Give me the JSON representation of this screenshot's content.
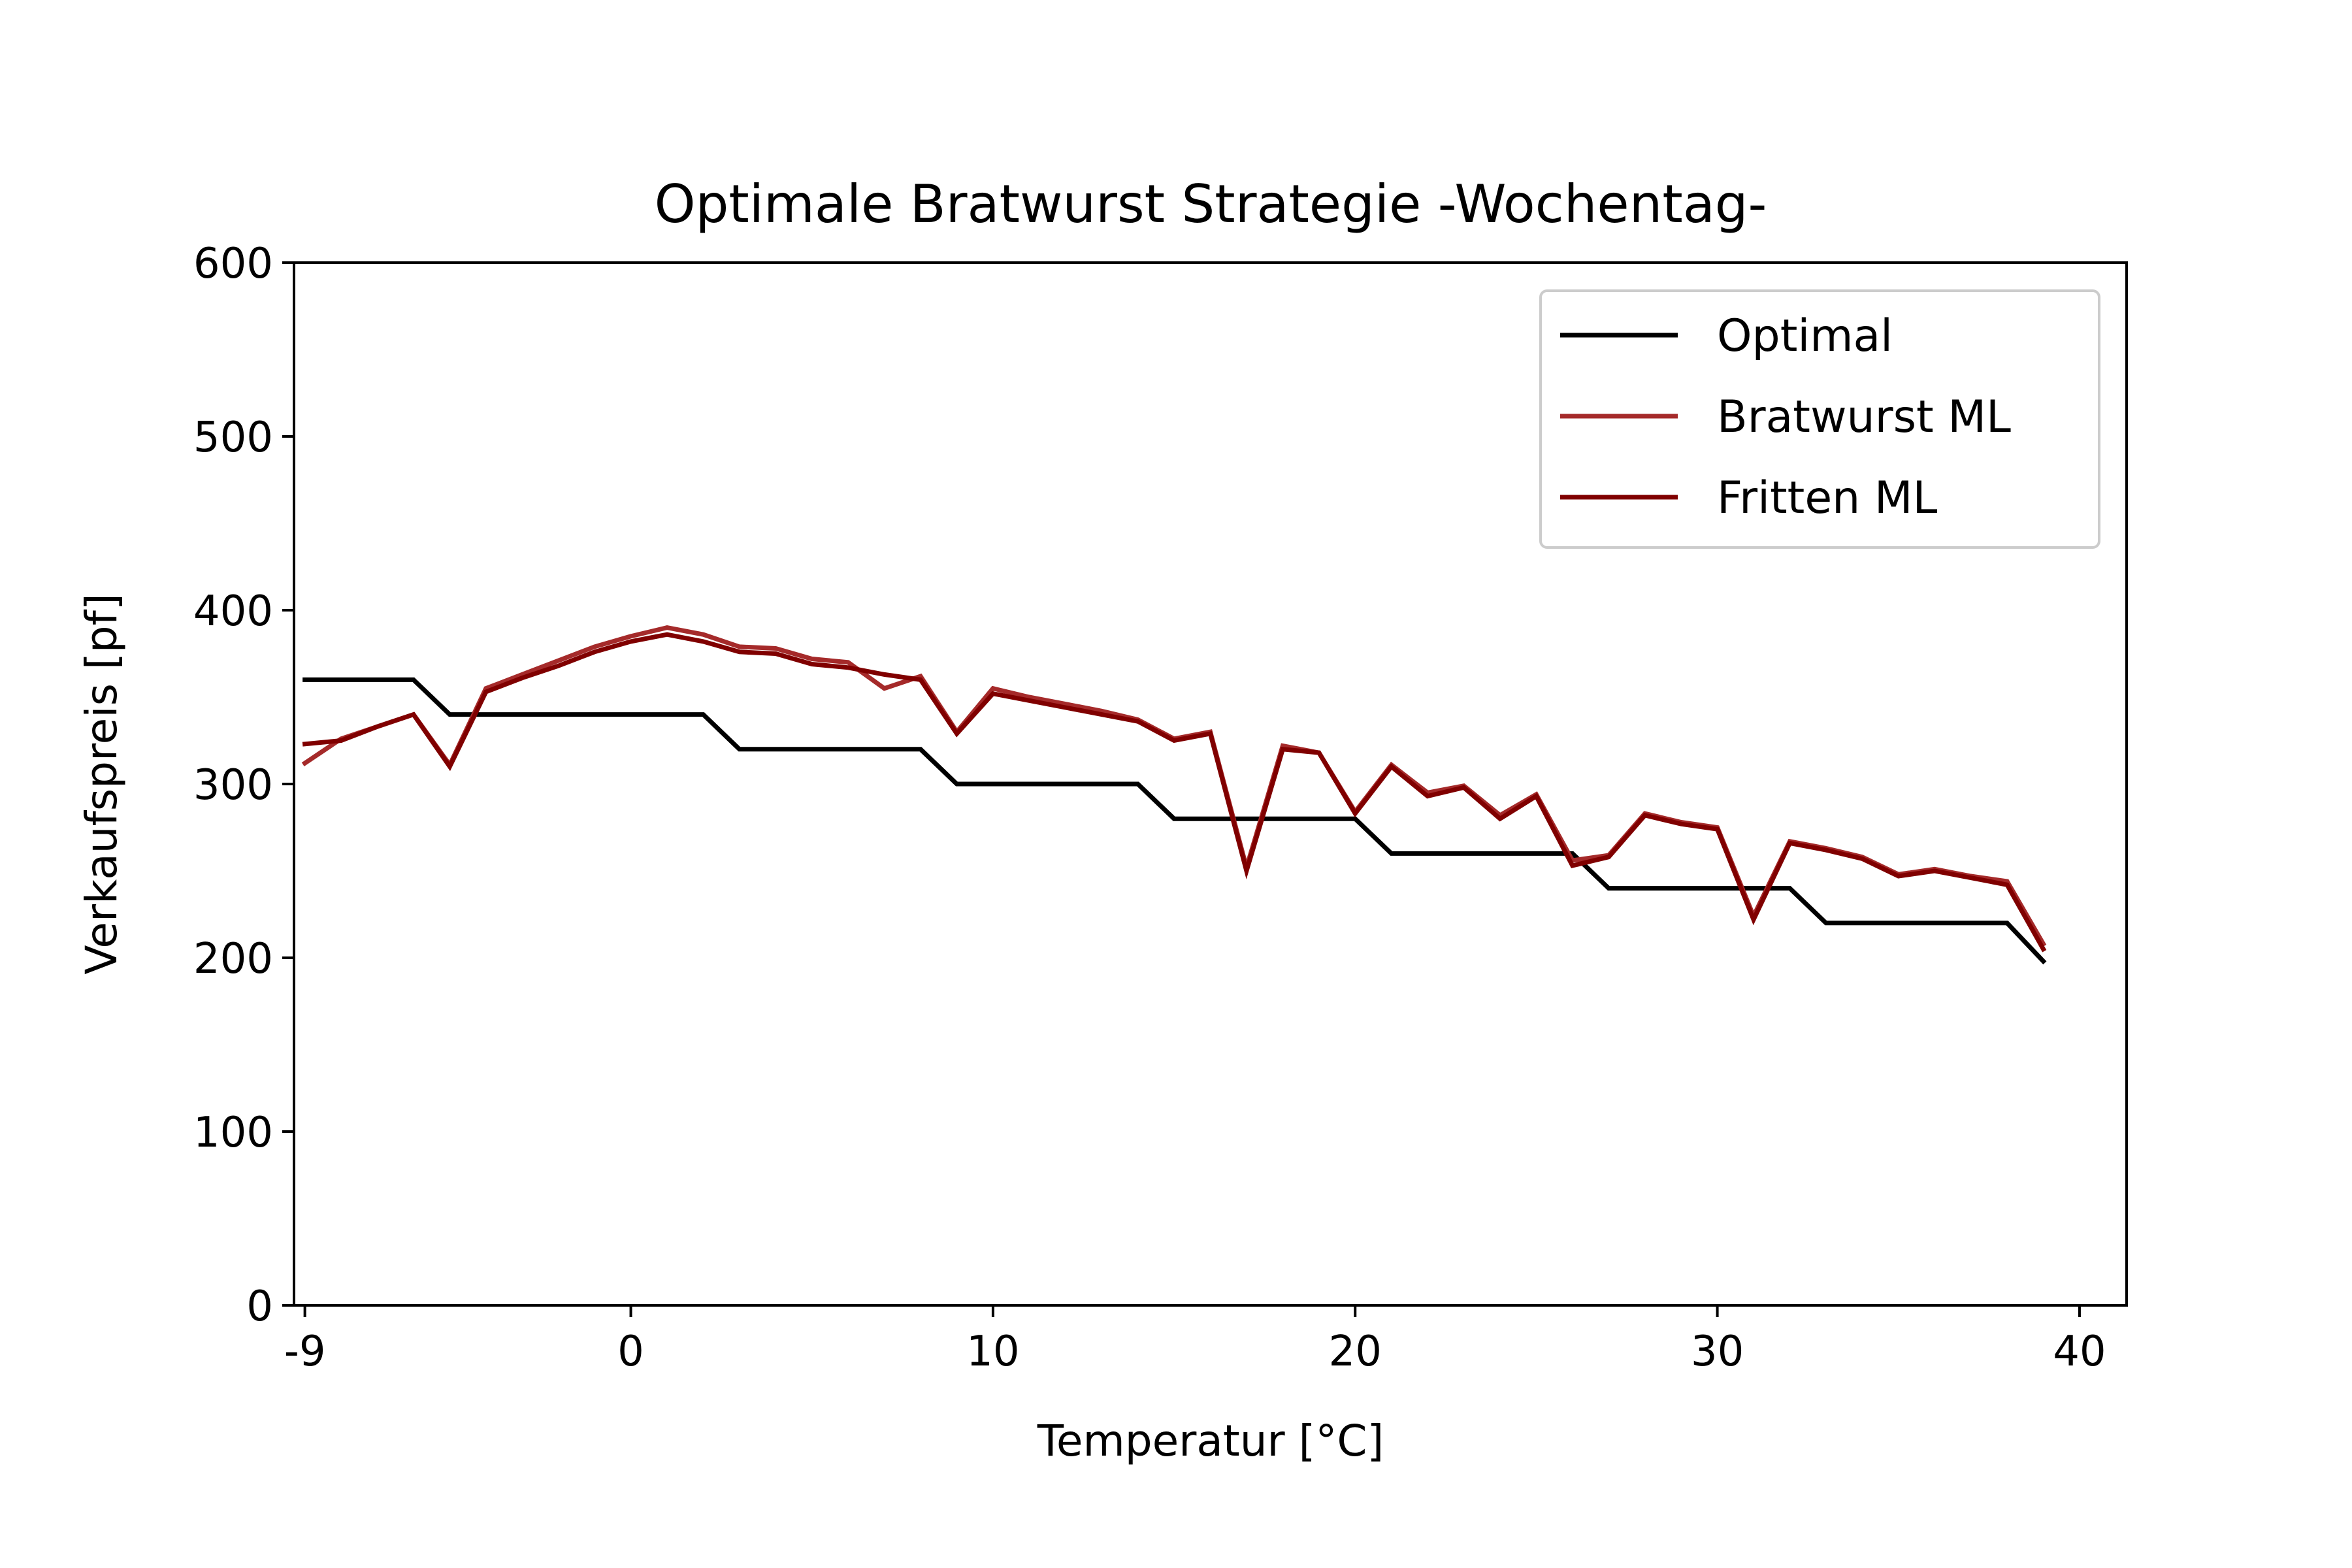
{
  "chart_data": {
    "type": "line",
    "title": "Optimale Bratwurst Strategie -Wochentag-",
    "xlabel": "Temperatur [°C]",
    "ylabel": "Verkaufspreis [pf]",
    "xlim": [
      -9.3,
      41.3
    ],
    "ylim": [
      0,
      600
    ],
    "x_ticks": [
      -9,
      0,
      10,
      20,
      30,
      40
    ],
    "y_ticks": [
      0,
      100,
      200,
      300,
      400,
      500,
      600
    ],
    "grid": false,
    "legend_position": "top-right",
    "x": [
      -9,
      -8,
      -7,
      -6,
      -5,
      -4,
      -3,
      -2,
      -1,
      0,
      1,
      2,
      3,
      4,
      5,
      6,
      7,
      8,
      9,
      10,
      11,
      12,
      13,
      14,
      15,
      16,
      17,
      18,
      19,
      20,
      21,
      22,
      23,
      24,
      25,
      26,
      27,
      28,
      29,
      30,
      31,
      32,
      33,
      34,
      35,
      36,
      37,
      38,
      39
    ],
    "series": [
      {
        "name": "Optimal",
        "color": "#000000",
        "values": [
          360,
          360,
          360,
          360,
          340,
          340,
          340,
          340,
          340,
          340,
          340,
          340,
          320,
          320,
          320,
          320,
          320,
          320,
          300,
          300,
          300,
          300,
          300,
          300,
          280,
          280,
          280,
          280,
          280,
          280,
          260,
          260,
          260,
          260,
          260,
          260,
          240,
          240,
          240,
          240,
          240,
          240,
          220,
          220,
          220,
          220,
          220,
          220,
          198
        ]
      },
      {
        "name": "Bratwurst ML",
        "color": "#a52a2a",
        "values": [
          312,
          326,
          333,
          340,
          311,
          355,
          363,
          371,
          379,
          385,
          390,
          386,
          379,
          378,
          372,
          370,
          355,
          362,
          330,
          355,
          350,
          346,
          342,
          337,
          326,
          330,
          252,
          322,
          318,
          284,
          311,
          295,
          299,
          282,
          294,
          256,
          259,
          283,
          278,
          275,
          224,
          267,
          263,
          258,
          248,
          251,
          247,
          244,
          208
        ]
      },
      {
        "name": "Fritten ML",
        "color": "#800000",
        "values": [
          323,
          325,
          333,
          340,
          310,
          353,
          361,
          368,
          376,
          382,
          386,
          382,
          376,
          375,
          369,
          367,
          363,
          360,
          329,
          352,
          348,
          344,
          340,
          336,
          325,
          329,
          250,
          320,
          318,
          283,
          310,
          293,
          298,
          280,
          293,
          253,
          258,
          282,
          277,
          274,
          222,
          266,
          262,
          257,
          247,
          250,
          246,
          242,
          205
        ]
      }
    ]
  }
}
